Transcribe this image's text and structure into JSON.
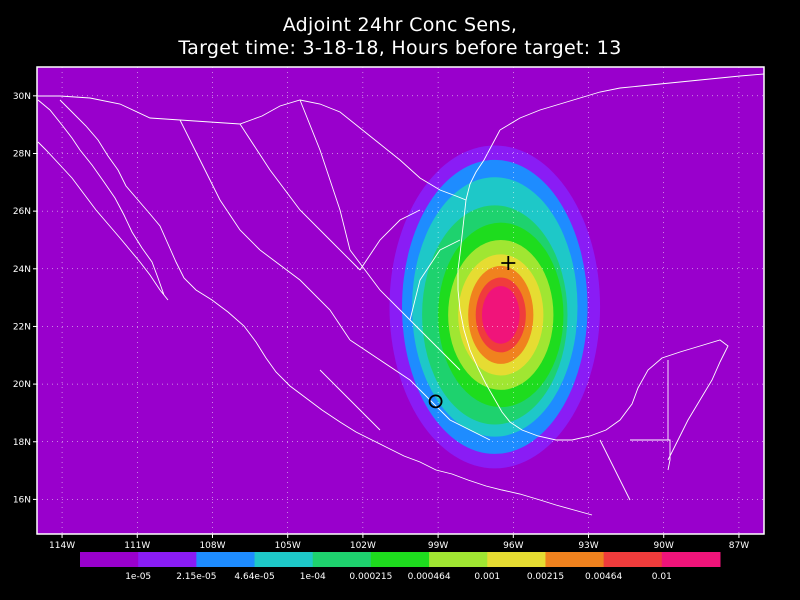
{
  "title_line1": "Adjoint 24hr Conc Sens,",
  "title_line2": "Target time: 3-18-18, Hours before target: 13",
  "map": {
    "lon_range": [
      -115,
      -86
    ],
    "lat_range": [
      14.8,
      31.0
    ],
    "lat_ticks": [
      {
        "value": 30,
        "label": "30N"
      },
      {
        "value": 28,
        "label": "28N"
      },
      {
        "value": 26,
        "label": "26N"
      },
      {
        "value": 24,
        "label": "24N"
      },
      {
        "value": 22,
        "label": "22N"
      },
      {
        "value": 20,
        "label": "20N"
      },
      {
        "value": 18,
        "label": "18N"
      },
      {
        "value": 16,
        "label": "16N"
      }
    ],
    "lon_ticks": [
      {
        "value": -114,
        "label": "114W"
      },
      {
        "value": -111,
        "label": "111W"
      },
      {
        "value": -108,
        "label": "108W"
      },
      {
        "value": -105,
        "label": "105W"
      },
      {
        "value": -102,
        "label": "102W"
      },
      {
        "value": -99,
        "label": "99W"
      },
      {
        "value": -96,
        "label": "96W"
      },
      {
        "value": -93,
        "label": "93W"
      },
      {
        "value": -90,
        "label": "90W"
      },
      {
        "value": -87,
        "label": "87W"
      }
    ],
    "background_color": "#9900cc",
    "plume": {
      "center": [
        -96.5,
        22.4
      ],
      "levels": [
        {
          "color": "#8a1cf5",
          "rx": 4.2,
          "ry": 5.6
        },
        {
          "color": "#1e8cff",
          "rx": 3.7,
          "ry": 5.1
        },
        {
          "color": "#1ec8c8",
          "rx": 3.3,
          "ry": 4.5
        },
        {
          "color": "#1ed26e",
          "rx": 2.9,
          "ry": 3.8
        },
        {
          "color": "#1edc1e",
          "rx": 2.5,
          "ry": 3.2
        },
        {
          "color": "#a0e632",
          "rx": 2.1,
          "ry": 2.6
        },
        {
          "color": "#e6dc32",
          "rx": 1.7,
          "ry": 2.1
        },
        {
          "color": "#f0821e",
          "rx": 1.3,
          "ry": 1.7
        },
        {
          "color": "#f03c3c",
          "rx": 1.0,
          "ry": 1.3
        },
        {
          "color": "#f0147a",
          "rx": 0.75,
          "ry": 1.0
        }
      ]
    },
    "target_marker": {
      "lon": -96.2,
      "lat": 24.2
    },
    "circle_marker": {
      "lon": -99.1,
      "lat": 19.4
    }
  },
  "colorbar": {
    "colors": [
      "#9900cc",
      "#8a1cf5",
      "#1e8cff",
      "#1ec8c8",
      "#1ed26e",
      "#1edc1e",
      "#a0e632",
      "#e6dc32",
      "#f0821e",
      "#f03c3c",
      "#f0147a"
    ],
    "labels": [
      "1e-05",
      "2.15e-05",
      "4.64e-05",
      "1e-04",
      "0.000215",
      "0.000464",
      "0.001",
      "0.00215",
      "0.00464",
      "0.01"
    ]
  }
}
